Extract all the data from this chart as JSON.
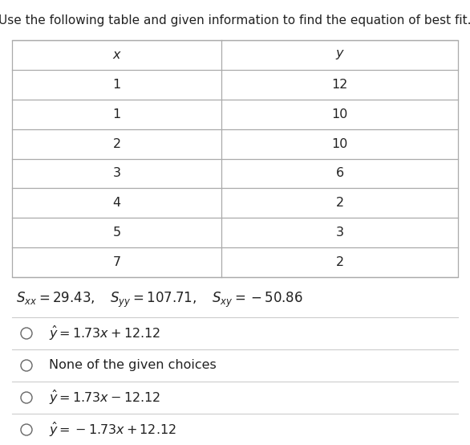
{
  "title": "Use the following table and given information to find the equation of best fit.",
  "table_x_header": "$x$",
  "table_y_header": "$y$",
  "table_x_values": [
    "1",
    "1",
    "2",
    "3",
    "4",
    "5",
    "7"
  ],
  "table_y_values": [
    "12",
    "10",
    "10",
    "6",
    "2",
    "3",
    "2"
  ],
  "stats_text": "$S_{xx} = 29.43, \\quad S_{yy} = 107.71, \\quad S_{xy} = -50.86$",
  "choices": [
    "$\\hat{y} = 1.73x + 12.12$",
    "None of the given choices",
    "$\\hat{y} = 1.73x - 12.12$",
    "$\\hat{y} = -1.73x + 12.12$"
  ],
  "bg_color": "#ffffff",
  "table_line_color": "#aaaaaa",
  "text_color": "#222222",
  "title_fontsize": 11.0,
  "table_fontsize": 11.5,
  "stats_fontsize": 12.0,
  "choices_fontsize": 11.5,
  "separator_color": "#cccccc",
  "circle_edge_color": "#666666"
}
